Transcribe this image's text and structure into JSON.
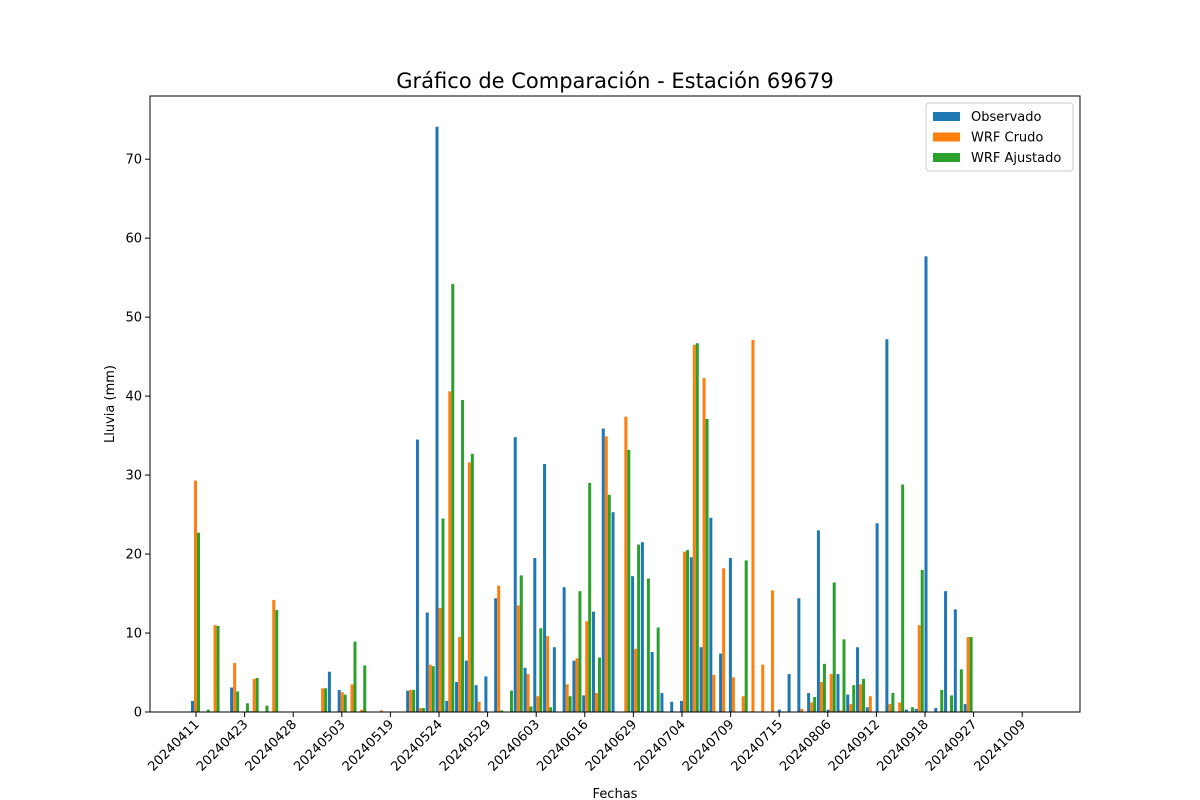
{
  "chart_data": {
    "type": "bar",
    "title": "Gráfico de Comparación - Estación 69679",
    "xlabel": "Fechas",
    "ylabel": "Lluvia (mm)",
    "ylim": [
      0,
      78
    ],
    "y_ticks": [
      0,
      10,
      20,
      30,
      40,
      50,
      60,
      70
    ],
    "x_tick_labels": [
      "20240411",
      "20240423",
      "20240428",
      "20240503",
      "20240519",
      "20240524",
      "20240529",
      "20240603",
      "20240616",
      "20240629",
      "20240704",
      "20240709",
      "20240715",
      "20240806",
      "20240912",
      "20240918",
      "20240927",
      "20241009"
    ],
    "legend_position": "top-right",
    "grid": false,
    "series": [
      {
        "name": "Observado",
        "color": "#1f77b4",
        "values": [
          1.4,
          0,
          0,
          0,
          3.1,
          0,
          0.1,
          0,
          0,
          0,
          0,
          0,
          0,
          0,
          5.1,
          2.8,
          0,
          0,
          0,
          0,
          0,
          0,
          2.7,
          34.5,
          12.6,
          74.1,
          1.4,
          3.8,
          6.5,
          3.4,
          4.5,
          14.4,
          0,
          34.8,
          5.6,
          19.5,
          31.4,
          8.2,
          15.8,
          6.5,
          2.1,
          12.7,
          35.9,
          25.3,
          0,
          17.2,
          21.5,
          7.6,
          2.4,
          1.3,
          1.4,
          19.6,
          8.2,
          24.6,
          7.4,
          19.5,
          0,
          0,
          0,
          0,
          0.3,
          4.8,
          14.4,
          2.4,
          23.0,
          0.3,
          4.8,
          2.2,
          8.2,
          0.6,
          23.9,
          47.2,
          0,
          0.3,
          0.4,
          57.7,
          0.5,
          15.3,
          13.0,
          1.0
        ]
      },
      {
        "name": "WRF Crudo",
        "color": "#ff7f0e",
        "values": [
          29.3,
          0,
          11.0,
          0,
          6.2,
          0,
          4.2,
          0,
          14.2,
          0,
          0,
          0,
          0,
          3.0,
          0,
          2.5,
          3.5,
          0.3,
          0,
          0.2,
          0,
          0,
          2.8,
          0.5,
          6.0,
          13.2,
          40.6,
          9.5,
          31.6,
          1.3,
          0,
          16.0,
          0,
          13.5,
          4.8,
          2.0,
          9.6,
          0,
          3.5,
          6.8,
          11.5,
          2.4,
          34.9,
          0,
          37.4,
          8.0,
          0,
          0,
          0,
          0,
          20.3,
          46.5,
          42.3,
          4.7,
          18.2,
          4.4,
          2.0,
          47.1,
          6.0,
          15.4,
          0,
          0,
          0.4,
          1.2,
          3.8,
          4.8,
          0.2,
          1.0,
          3.5,
          2.0,
          0,
          1.0,
          1.2,
          0,
          11.0,
          0,
          0,
          0,
          0,
          9.5
        ]
      },
      {
        "name": "WRF Ajustado",
        "color": "#2ca02c",
        "values": [
          22.7,
          0.3,
          10.9,
          0,
          2.6,
          1.1,
          4.3,
          0.8,
          12.9,
          0,
          0,
          0,
          0,
          3.0,
          0,
          2.2,
          8.9,
          5.9,
          0,
          0,
          0,
          0,
          2.8,
          0.5,
          5.8,
          24.5,
          54.2,
          39.5,
          32.7,
          0,
          0,
          0.2,
          2.7,
          17.3,
          0.7,
          10.6,
          0.6,
          0,
          2.0,
          15.3,
          29.0,
          6.9,
          27.5,
          0,
          33.2,
          21.2,
          16.9,
          10.7,
          0,
          0,
          20.5,
          46.7,
          37.1,
          0,
          0,
          0,
          19.2,
          0,
          0,
          0,
          0,
          0,
          0,
          1.9,
          6.1,
          16.4,
          9.2,
          3.4,
          4.2,
          0,
          0,
          2.4,
          28.8,
          0.6,
          18.0,
          0,
          2.8,
          2.1,
          5.4,
          9.5
        ]
      }
    ]
  }
}
